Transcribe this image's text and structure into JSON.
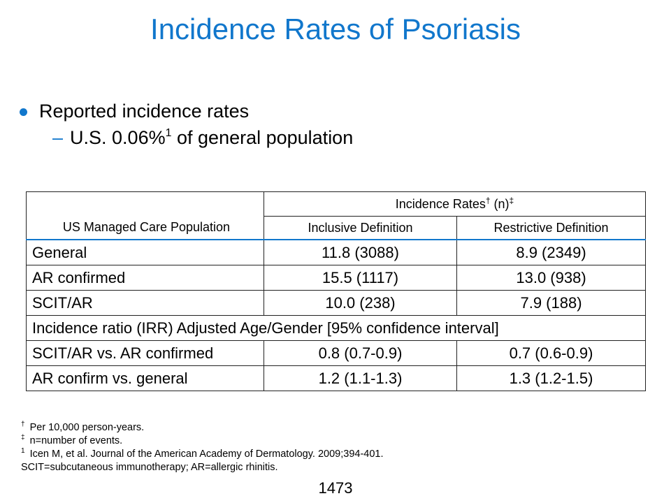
{
  "slide": {
    "title": "Incidence Rates of Psoriasis",
    "accent_color": "#1177cc",
    "bullet": "Reported incidence rates",
    "sub_bullet_dash": "–",
    "sub_bullet_text_a": "U.S. 0.06%",
    "sub_bullet_sup": "1",
    "sub_bullet_text_b": " of general population"
  },
  "table": {
    "pop_header": "US Managed Care Population",
    "rates_header_a": "Incidence Rates",
    "rates_header_sup1": "†",
    "rates_header_b": " (n)",
    "rates_header_sup2": "‡",
    "col_inclusive": "Inclusive Definition",
    "col_restrictive": "Restrictive Definition",
    "rows": [
      {
        "label": "General",
        "inclusive": "11.8 (3088)",
        "restrictive": "8.9 (2349)"
      },
      {
        "label": "AR confirmed",
        "inclusive": "15.5 (1117)",
        "restrictive": "13.0 (938)"
      },
      {
        "label": "SCIT/AR",
        "inclusive": "10.0 (238)",
        "restrictive": "7.9 (188)"
      }
    ],
    "ratio_header": "Incidence ratio (IRR) Adjusted Age/Gender [95% confidence interval]",
    "ratio_rows": [
      {
        "label": "SCIT/AR vs. AR confirmed",
        "inclusive": "0.8 (0.7-0.9)",
        "restrictive": "0.7 (0.6-0.9)"
      },
      {
        "label": "AR confirm vs. general",
        "inclusive": "1.2 (1.1-1.3)",
        "restrictive": "1.3 (1.2-1.5)"
      }
    ]
  },
  "footnotes": [
    {
      "mark": "†",
      "text": " Per 10,000 person-years."
    },
    {
      "mark": "‡",
      "text": " n=number of events."
    },
    {
      "mark": "1",
      "text": " Icen M, et al. Journal of the American Academy of Dermatology. 2009;394-401."
    },
    {
      "mark": "",
      "text": "SCIT=subcutaneous immunotherapy; AR=allergic rhinitis."
    }
  ],
  "page_number": "1473"
}
